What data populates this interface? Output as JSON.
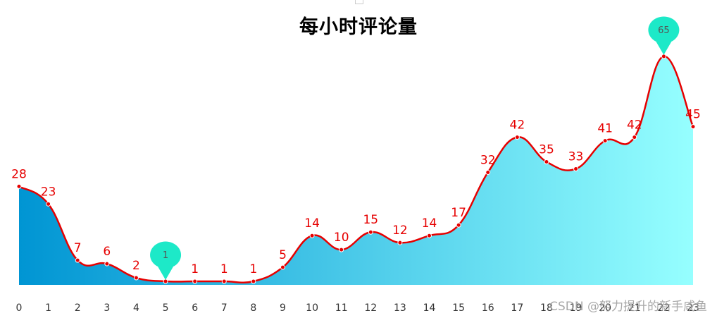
{
  "chart_data": {
    "type": "area",
    "title": "每小时评论量",
    "xlabel": "",
    "ylabel": "",
    "categories": [
      "0",
      "1",
      "2",
      "3",
      "4",
      "5",
      "6",
      "7",
      "8",
      "9",
      "10",
      "11",
      "12",
      "13",
      "14",
      "15",
      "16",
      "17",
      "18",
      "19",
      "20",
      "21",
      "22",
      "23"
    ],
    "values": [
      28,
      23,
      7,
      6,
      2,
      1,
      1,
      1,
      1,
      5,
      14,
      10,
      15,
      12,
      14,
      17,
      32,
      42,
      35,
      33,
      41,
      42,
      65,
      45
    ],
    "ylim": [
      0,
      70
    ],
    "grid": false,
    "smooth": true,
    "markers": {
      "max": {
        "category": "22",
        "value": 65,
        "label": "65"
      },
      "min": {
        "category": "5",
        "value": 1,
        "label": "1"
      }
    },
    "line_color": "#e60000",
    "label_color": "#e60000",
    "marker_color": "#1de9c8",
    "gradient_start": "#0095d3",
    "gradient_end": "#96ffff"
  },
  "watermark": "CSDN @努力提升的新手咸鱼"
}
